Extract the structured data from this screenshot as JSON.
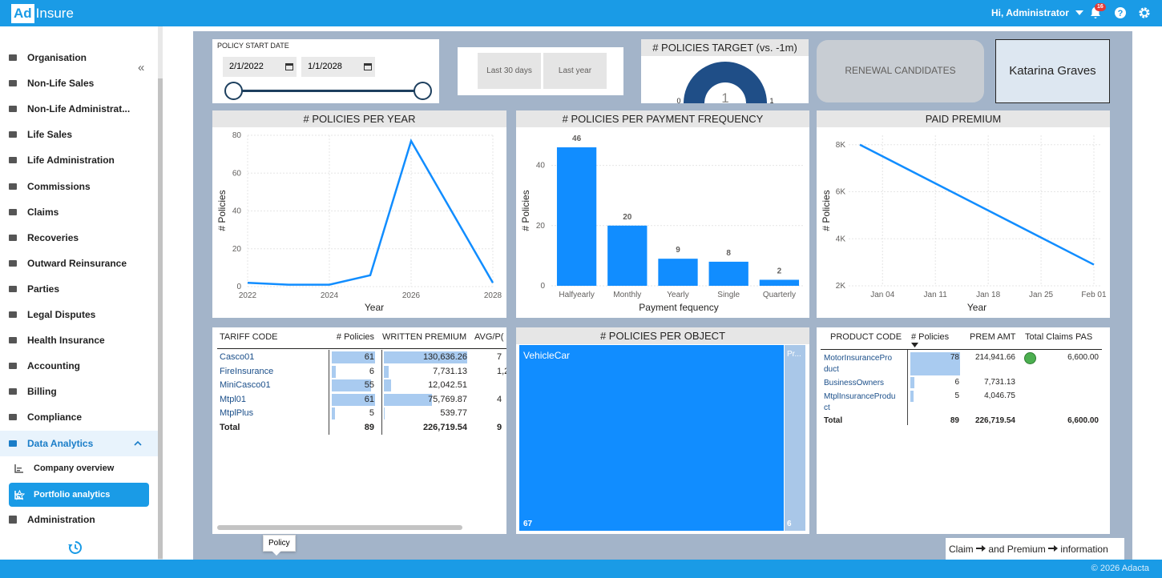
{
  "app": {
    "logo_left": "Ad",
    "logo_right": "Insure",
    "greeting": "Hi, Administrator",
    "notifications": "16",
    "copyright": "© 2026 Adacta"
  },
  "sidebar": {
    "items": [
      {
        "label": "Organisation",
        "icon": "organisation-icon"
      },
      {
        "label": "Non-Life Sales",
        "icon": "sales-icon"
      },
      {
        "label": "Non-Life Administrat...",
        "icon": "admin-icon"
      },
      {
        "label": "Life Sales",
        "icon": "sales-icon"
      },
      {
        "label": "Life Administration",
        "icon": "admin-icon"
      },
      {
        "label": "Commissions",
        "icon": "commissions-icon"
      },
      {
        "label": "Claims",
        "icon": "claims-icon"
      },
      {
        "label": "Recoveries",
        "icon": "recoveries-icon"
      },
      {
        "label": "Outward Reinsurance",
        "icon": "reinsurance-icon"
      },
      {
        "label": "Parties",
        "icon": "parties-icon"
      },
      {
        "label": "Legal Disputes",
        "icon": "legal-icon"
      },
      {
        "label": "Health Insurance",
        "icon": "health-icon"
      },
      {
        "label": "Accounting",
        "icon": "accounting-icon"
      },
      {
        "label": "Billing",
        "icon": "billing-icon"
      },
      {
        "label": "Compliance",
        "icon": "compliance-icon"
      },
      {
        "label": "Data Analytics",
        "icon": "analytics-icon"
      }
    ],
    "sub_items": [
      {
        "label": "Company overview"
      },
      {
        "label": "Portfolio analytics"
      }
    ],
    "administration": "Administration"
  },
  "filters": {
    "policy_start_label": "POLICY START DATE",
    "date_from": "2/1/2022",
    "date_to": "1/1/2028",
    "btn_last30": "Last 30 days",
    "btn_lastyear": "Last year"
  },
  "gauge": {
    "title": "# POLICIES TARGET (vs. -1m)",
    "value": 1,
    "min": 0,
    "max": 1,
    "value_label": "1",
    "min_label": "0",
    "max_label": "1"
  },
  "renewal": {
    "label": "RENEWAL CANDIDATES"
  },
  "user_card": {
    "name": "Katarina Graves"
  },
  "chart_data": [
    {
      "type": "line",
      "title": "# POLICIES PER YEAR",
      "xlabel": "Year",
      "ylabel": "# Policies",
      "x": [
        2022,
        2023,
        2024,
        2025,
        2026,
        2028
      ],
      "values": [
        2,
        1,
        1,
        6,
        77,
        2
      ],
      "x_ticks": [
        "2022",
        "2024",
        "2026",
        "2028"
      ],
      "y_ticks": [
        "0",
        "20",
        "40",
        "60",
        "80"
      ],
      "xlim": [
        2022,
        2028
      ],
      "ylim": [
        0,
        80
      ],
      "grid": true,
      "color": "#118dff"
    },
    {
      "type": "bar",
      "title": "# POLICIES PER PAYMENT FREQUENCY",
      "xlabel": "Payment fequency",
      "ylabel": "# Policies",
      "categories": [
        "Halfyearly",
        "Monthly",
        "Yearly",
        "Single",
        "Quarterly"
      ],
      "values": [
        46,
        20,
        9,
        8,
        2
      ],
      "data_labels": [
        "46",
        "20",
        "9",
        "8",
        "2"
      ],
      "y_ticks": [
        "0",
        "20",
        "40"
      ],
      "ylim": [
        0,
        50
      ],
      "grid": true,
      "color": "#118dff"
    },
    {
      "type": "line",
      "title": "PAID PREMIUM",
      "xlabel": "Year",
      "ylabel": "# Policies",
      "x_ticks": [
        "Jan 04",
        "Jan 11",
        "Jan 18",
        "Jan 25",
        "Feb 01"
      ],
      "y_ticks": [
        "2K",
        "4K",
        "6K",
        "8K"
      ],
      "x_start": "Jan 01",
      "x_end": "Feb 01",
      "values_start": 8000,
      "values_end": 2900,
      "ylim": [
        2000,
        8400
      ],
      "grid": true,
      "color": "#118dff"
    },
    {
      "type": "treemap",
      "title": "# POLICIES PER OBJECT",
      "categories": [
        "VehicleCar",
        "Pr..."
      ],
      "values": [
        67,
        6
      ],
      "value_labels": [
        "67",
        "6"
      ]
    }
  ],
  "tariff_table": {
    "headers": [
      "TARIFF CODE",
      "# Policies",
      "WRITTEN PREMIUM",
      "AVG/P("
    ],
    "rows": [
      {
        "code": "Casco01",
        "policies": "61",
        "premium": "130,636.26",
        "avg": "7",
        "p_frac": 1.0,
        "w_frac": 1.0
      },
      {
        "code": "FireInsurance",
        "policies": "6",
        "premium": "7,731.13",
        "avg": "1,2",
        "p_frac": 0.1,
        "w_frac": 0.06
      },
      {
        "code": "MiniCasco01",
        "policies": "55",
        "premium": "12,042.51",
        "avg": "",
        "p_frac": 0.9,
        "w_frac": 0.09
      },
      {
        "code": "Mtpl01",
        "policies": "61",
        "premium": "75,769.87",
        "avg": "4",
        "p_frac": 1.0,
        "w_frac": 0.58
      },
      {
        "code": "MtplPlus",
        "policies": "5",
        "premium": "539.77",
        "avg": "",
        "p_frac": 0.08,
        "w_frac": 0.004
      }
    ],
    "total": {
      "label": "Total",
      "policies": "89",
      "premium": "226,719.54",
      "avg": "9"
    }
  },
  "product_table": {
    "headers": [
      "PRODUCT CODE",
      "# Policies",
      "PREM AMT",
      "Total Claims PAS"
    ],
    "rows": [
      {
        "code_l1": "MotorInsurancePro",
        "code_l2": "duct",
        "policies": "78",
        "prem": "214,941.66",
        "claims": "6,600.00",
        "frac": 1.0,
        "status": "#4caf50"
      },
      {
        "code_l1": "BusinessOwners",
        "code_l2": "",
        "policies": "6",
        "prem": "7,731.13",
        "claims": "",
        "frac": 0.08
      },
      {
        "code_l1": "MtplInsuranceProdu",
        "code_l2": "ct",
        "policies": "5",
        "prem": "4,046.75",
        "claims": "",
        "frac": 0.06
      }
    ],
    "total": {
      "label": "Total",
      "policies": "89",
      "prem": "226,719.54",
      "claims": "6,600.00"
    }
  },
  "tooltip": "Policy",
  "claim_link": {
    "a": "Claim",
    "b": "and Premium",
    "c": "information"
  }
}
